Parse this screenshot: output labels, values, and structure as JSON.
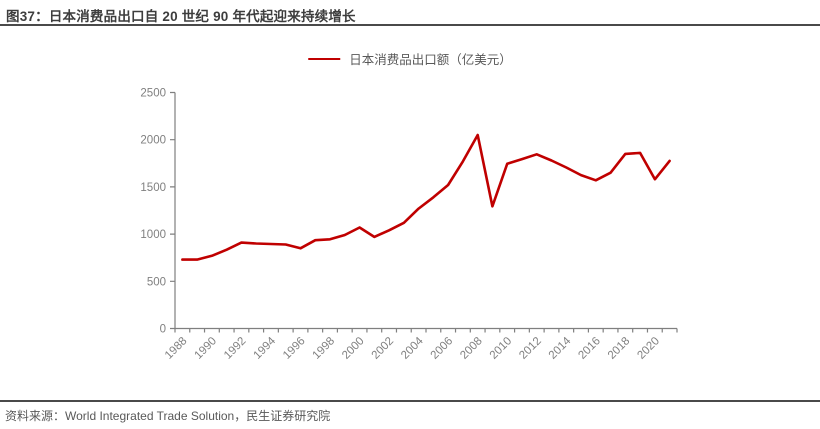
{
  "header": {
    "title": "图37：日本消费品出口自 20 世纪 90 年代起迎来持续增长"
  },
  "legend": {
    "label": "日本消费品出口额（亿美元）"
  },
  "footer": {
    "source": "资料来源：World Integrated Trade Solution，民生证券研究院"
  },
  "colors": {
    "line": "#C00000",
    "axis": "#7f7f7f",
    "tick_label": "#808080",
    "title_text": "#3d3d3d",
    "rule": "#4a4a4a",
    "legend_text": "#595959",
    "footer_text": "#595959",
    "background": "#ffffff"
  },
  "chart_data": {
    "type": "line",
    "title": "日本消费品出口自 20 世纪 90 年代起迎来持续增长",
    "legend_entries": [
      "日本消费品出口额（亿美元）"
    ],
    "legend_position": "top-center",
    "grid": false,
    "xlabel": "",
    "ylabel": "",
    "ylim": [
      0,
      2500
    ],
    "yticks": [
      0,
      500,
      1000,
      1500,
      2000,
      2500
    ],
    "xtick_labels": [
      "1988",
      "1990",
      "1992",
      "1994",
      "1996",
      "1998",
      "2000",
      "2002",
      "2004",
      "2006",
      "2008",
      "2010",
      "2012",
      "2014",
      "2016",
      "2018",
      "2020"
    ],
    "x": [
      1988,
      1989,
      1990,
      1991,
      1992,
      1993,
      1994,
      1995,
      1996,
      1997,
      1998,
      1999,
      2000,
      2001,
      2002,
      2003,
      2004,
      2005,
      2006,
      2007,
      2008,
      2009,
      2010,
      2011,
      2012,
      2013,
      2014,
      2015,
      2016,
      2017,
      2018,
      2019,
      2020,
      2021
    ],
    "series": [
      {
        "name": "日本消费品出口额（亿美元）",
        "values": [
          730,
          730,
          770,
          835,
          910,
          900,
          895,
          890,
          850,
          935,
          945,
          990,
          1070,
          970,
          1040,
          1120,
          1270,
          1390,
          1520,
          1770,
          2050,
          1295,
          1745,
          1795,
          1845,
          1780,
          1705,
          1625,
          1570,
          1650,
          1850,
          1860,
          1580,
          1775
        ]
      }
    ]
  }
}
